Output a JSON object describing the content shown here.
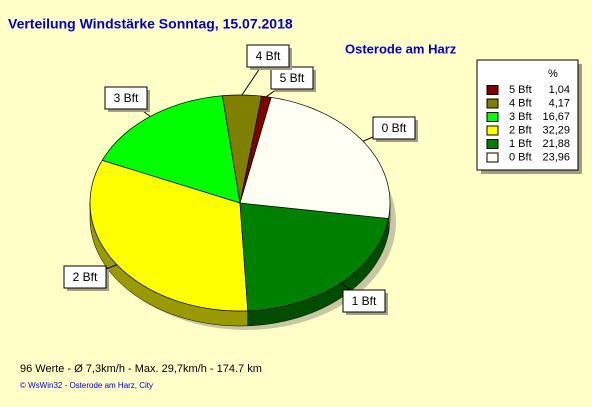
{
  "chart_data": {
    "type": "pie",
    "title": "Verteilung Windstärke  Sonntag, 15.07.2018",
    "subtitle": "Osterode am Harz",
    "legend_header": "%",
    "categories": [
      "5 Bft",
      "4 Bft",
      "3 Bft",
      "2 Bft",
      "1 Bft",
      "0 Bft"
    ],
    "values": [
      1.04,
      4.17,
      16.67,
      32.29,
      21.88,
      23.96
    ],
    "value_labels": [
      "1,04",
      "4,17",
      "16,67",
      "32,29",
      "21,88",
      "23,96"
    ],
    "colors": [
      "#800000",
      "#808000",
      "#00ff00",
      "#ffff00",
      "#008000",
      "#fffff4"
    ],
    "legend": "upper right",
    "footer": [
      "96 Werte   -   Ø 7,3km/h  -  Max. 29,7km/h   -   174.7 km",
      "© WsWin32  -  Osterode am Harz, City"
    ]
  }
}
